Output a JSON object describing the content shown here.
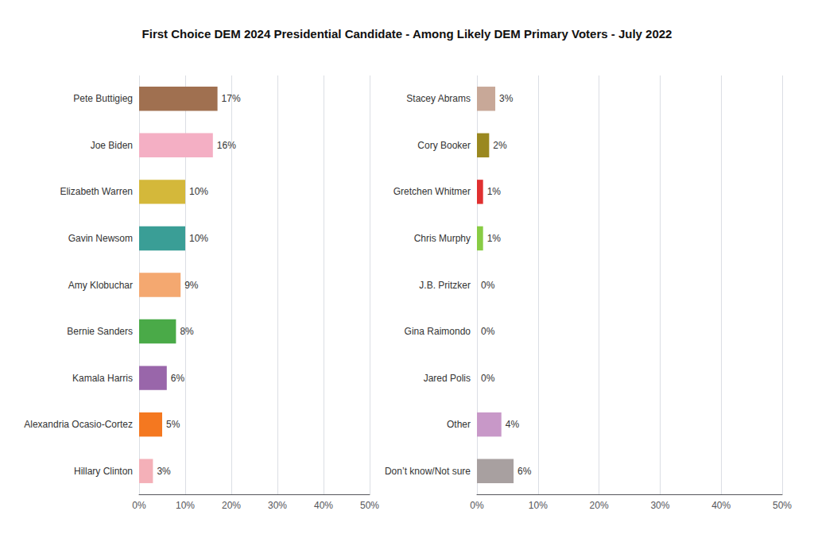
{
  "chart_data": [
    {
      "type": "bar",
      "title": "First Choice DEM 2024 Presidential Candidate - Among Likely DEM Primary Voters - July 2022",
      "orientation": "horizontal",
      "categories": [
        "Pete Buttigieg",
        "Joe Biden",
        "Elizabeth Warren",
        "Gavin Newsom",
        "Amy Klobuchar",
        "Bernie Sanders",
        "Kamala Harris",
        "Alexandria Ocasio-Cortez",
        "Hillary Clinton"
      ],
      "values": [
        17,
        16,
        10,
        10,
        9,
        8,
        6,
        5,
        3
      ],
      "value_labels": [
        "17%",
        "16%",
        "10%",
        "10%",
        "9%",
        "8%",
        "6%",
        "5%",
        "3%"
      ],
      "colors": [
        "#a07050",
        "#f4afc4",
        "#d4b83a",
        "#3a9e96",
        "#f4a870",
        "#4aaa48",
        "#9966aa",
        "#f47820",
        "#f4b0b8"
      ],
      "xlim": [
        0,
        50
      ],
      "xticks": [
        {
          "value": 0,
          "label": "0%"
        },
        {
          "value": 10,
          "label": "10%"
        },
        {
          "value": 20,
          "label": "20%"
        },
        {
          "value": 30,
          "label": "30%"
        },
        {
          "value": 40,
          "label": "40%"
        },
        {
          "value": 50,
          "label": "50%"
        }
      ],
      "grid": true,
      "data_labels": true
    },
    {
      "type": "bar",
      "orientation": "horizontal",
      "categories": [
        "Stacey Abrams",
        "Cory Booker",
        "Gretchen Whitmer",
        "Chris Murphy",
        "J.B. Pritzker",
        "Gina Raimondo",
        "Jared Polis",
        "Other",
        "Don’t know/Not sure"
      ],
      "values": [
        3,
        2,
        1,
        1,
        0,
        0,
        0,
        4,
        6
      ],
      "value_labels": [
        "3%",
        "2%",
        "1%",
        "1%",
        "0%",
        "0%",
        "0%",
        "4%",
        "6%"
      ],
      "colors": [
        "#c8a898",
        "#9a8820",
        "#e03030",
        "#88cc44",
        "#aaaaaa",
        "#aaaaaa",
        "#aaaaaa",
        "#c898c8",
        "#a8a0a0"
      ],
      "xlim": [
        0,
        50
      ],
      "xticks": [
        {
          "value": 0,
          "label": "0%"
        },
        {
          "value": 10,
          "label": "10%"
        },
        {
          "value": 20,
          "label": "20%"
        },
        {
          "value": 30,
          "label": "30%"
        },
        {
          "value": 40,
          "label": "40%"
        },
        {
          "value": 50,
          "label": "50%"
        }
      ],
      "grid": true,
      "data_labels": true
    }
  ]
}
